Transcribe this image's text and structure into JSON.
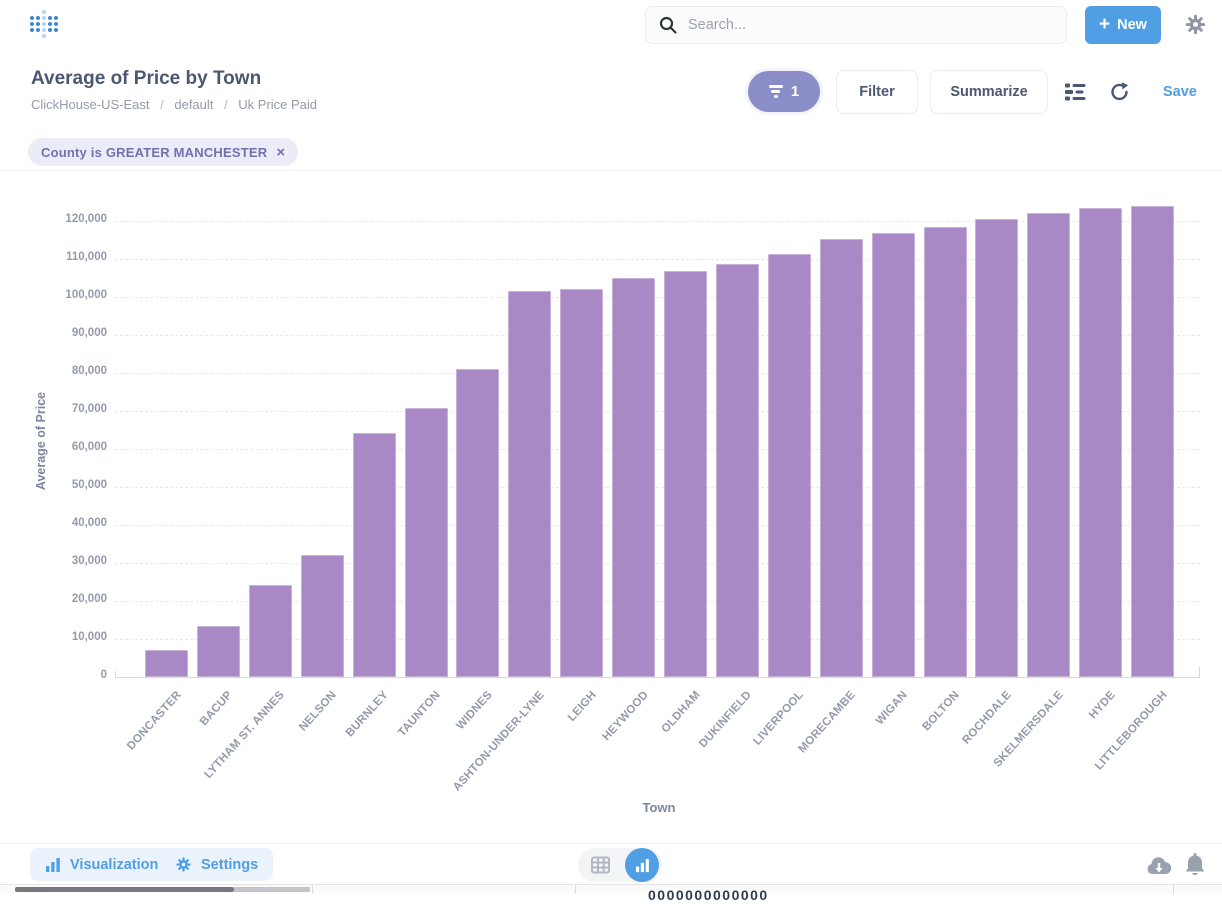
{
  "header": {
    "search_placeholder": "Search...",
    "new_label": "New"
  },
  "question": {
    "title": "Average of Price by Town",
    "breadcrumb": [
      "ClickHouse-US-East",
      "default",
      "Uk Price Paid"
    ],
    "breadcrumb_separator": "/",
    "filter_count": "1",
    "filter_label": "Filter",
    "summarize_label": "Summarize",
    "save_label": "Save"
  },
  "filters": {
    "chip_text": "County is GREATER MANCHESTER",
    "chip_close": "×"
  },
  "footer": {
    "visualization_label": "Visualization",
    "settings_label": "Settings"
  },
  "clipped_row": {
    "text": "0000000000000"
  },
  "colors": {
    "brand_blue": "#509ee3",
    "bar_purple": "#a989c5",
    "filter_purple": "#8a8dc7",
    "chip_bg": "#ececf8",
    "chip_text": "#7172ad",
    "dark_text": "#4c5773",
    "muted_text": "#949aab"
  },
  "chart_data": {
    "type": "bar",
    "title": "Average of Price by Town",
    "xlabel": "Town",
    "ylabel": "Average of Price",
    "ylim": [
      0,
      130000
    ],
    "grid": true,
    "legend": "none",
    "bar_color": "#a989c5",
    "y_ticks": [
      "0",
      "10,000",
      "20,000",
      "30,000",
      "40,000",
      "50,000",
      "60,000",
      "70,000",
      "80,000",
      "90,000",
      "100,000",
      "110,000",
      "120,000"
    ],
    "categories": [
      "DONCASTER",
      "BACUP",
      "LYTHAM ST. ANNES",
      "NELSON",
      "BURNLEY",
      "TAUNTON",
      "WIDNES",
      "ASHTON-UNDER-LYNE",
      "LEIGH",
      "HEYWOOD",
      "OLDHAM",
      "DUKINFIELD",
      "LIVERPOOL",
      "MORECAMBE",
      "WIGAN",
      "BOLTON",
      "ROCHDALE",
      "SKELMERSDALE",
      "HYDE",
      "LITTLEBOROUGH"
    ],
    "values": [
      7200,
      13500,
      24200,
      32100,
      64200,
      70700,
      81000,
      101600,
      102000,
      105100,
      106900,
      108600,
      111300,
      115200,
      116900,
      118500,
      120500,
      122100,
      123300,
      124000
    ]
  }
}
